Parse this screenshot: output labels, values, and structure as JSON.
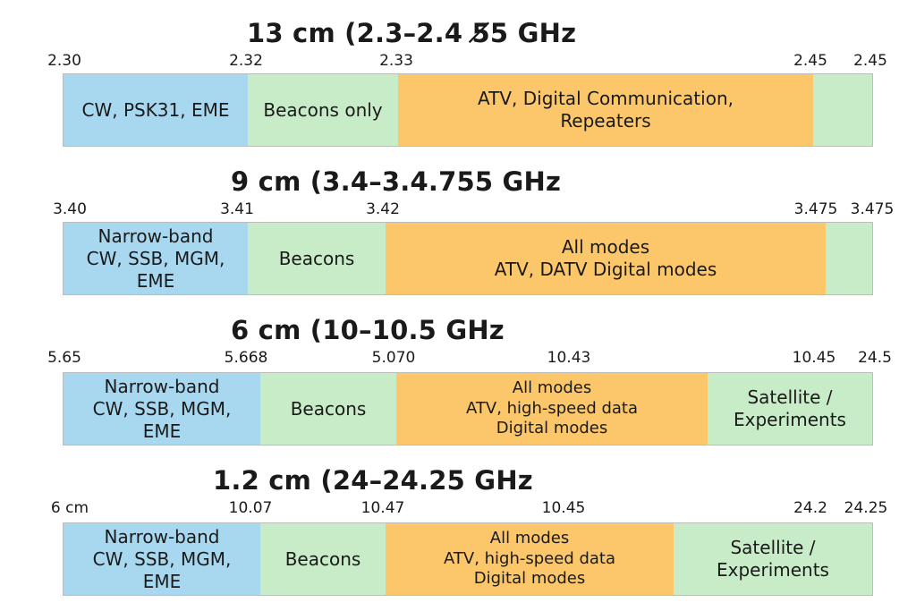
{
  "colors": {
    "blue": "#a8d8f0",
    "green": "#c8ecc8",
    "orange": "#fcc76a"
  },
  "bands": [
    {
      "title": "13 cm (2.3–2.4 5̸5 GHz",
      "ticks": [
        "2.30",
        "2.32",
        "2.33",
        "2.45",
        "2.45"
      ],
      "segments": [
        {
          "label": "CW, PSK31, EME",
          "color": "blue"
        },
        {
          "label": "Beacons only",
          "color": "green"
        },
        {
          "label": "ATV, Digital Communication,\nRepeaters",
          "color": "orange"
        },
        {
          "label": "",
          "color": "green"
        }
      ]
    },
    {
      "title": "9 cm (3.4–3.4.755 GHz",
      "ticks": [
        "3.40",
        "3.41",
        "3.42",
        "3.475",
        "3.475"
      ],
      "segments": [
        {
          "label": "Narrow-band\nCW, SSB, MGM,\nEME",
          "color": "blue"
        },
        {
          "label": "Beacons",
          "color": "green"
        },
        {
          "label": "All modes\nATV, DATV  Digital modes",
          "color": "orange"
        },
        {
          "label": "",
          "color": "green"
        }
      ]
    },
    {
      "title": "6 cm (10–10.5 GHz",
      "ticks": [
        "5.65",
        "5.668",
        "5.070",
        "10.43",
        "10.45",
        "24.5"
      ],
      "segments": [
        {
          "label": "Narrow-band\nCW, SSB, MGM,\nEME",
          "color": "blue"
        },
        {
          "label": "Beacons",
          "color": "green"
        },
        {
          "label": "All modes\nATV, high-speed data\nDigital modes",
          "color": "orange"
        },
        {
          "label": "Satellite /\nExperiments",
          "color": "green"
        }
      ]
    },
    {
      "title": "1.2 cm (24–24.25 GHz",
      "ticks": [
        "6 cm",
        "10.07",
        "10.47",
        "10.45",
        "24.2",
        "24.25"
      ],
      "segments": [
        {
          "label": "Narrow-band\nCW, SSB, MGM,\nEME",
          "color": "blue"
        },
        {
          "label": "Beacons",
          "color": "green"
        },
        {
          "label": "All modes\nATV, high-speed data\nDigital modes",
          "color": "orange"
        },
        {
          "label": "Satellite /\nExperiments",
          "color": "green"
        }
      ]
    }
  ]
}
